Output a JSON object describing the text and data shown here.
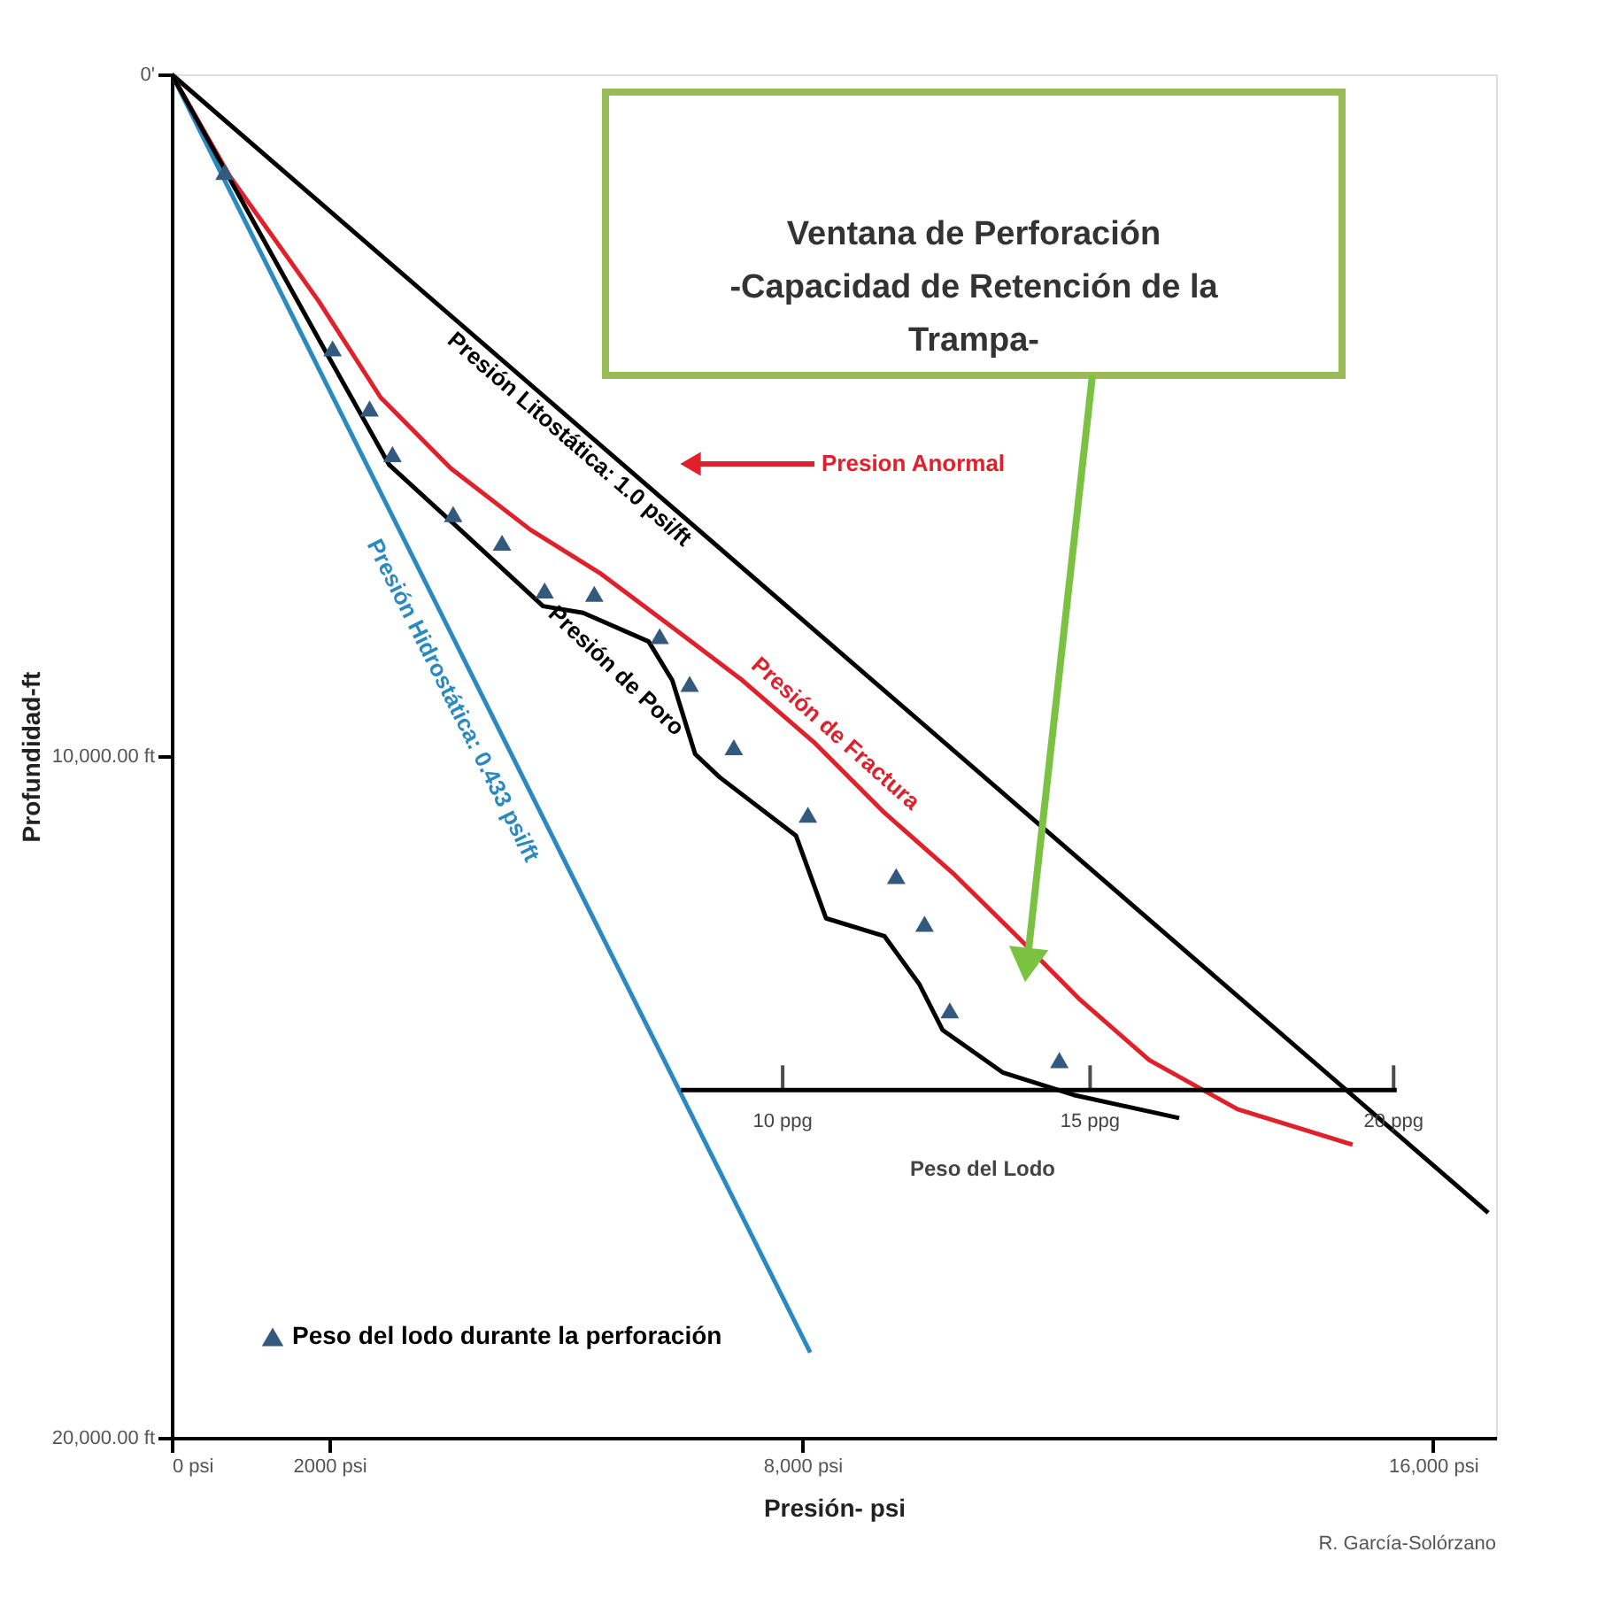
{
  "chart_data": {
    "type": "line",
    "xlabel": "Presión- psi",
    "ylabel": "Profundidad-ft",
    "xlim": [
      0,
      16800
    ],
    "ylim": [
      20000,
      0
    ],
    "xticks": [
      {
        "value": 0,
        "label": "0 psi"
      },
      {
        "value": 2000,
        "label": "2000 psi"
      },
      {
        "value": 8000,
        "label": "8,000 psi"
      },
      {
        "value": 16000,
        "label": "16,000 psi"
      }
    ],
    "yticks": [
      {
        "value": 0,
        "label": "0'"
      },
      {
        "value": 10000,
        "label": "10,000.00 ft"
      },
      {
        "value": 20000,
        "label": "20,000.00 ft"
      }
    ],
    "grid": false,
    "legend": "bottom left",
    "line_style": "solid",
    "series": [
      {
        "name": "Presión Litostática: 1.0 psi/ft",
        "color": "#000000",
        "x": [
          0,
          16700
        ],
        "values": [
          0,
          16700
        ]
      },
      {
        "name": "Presión Hidrostática: 0.433 psi/ft",
        "color": "#2a8ac0",
        "x": [
          0,
          8100
        ],
        "values": [
          0,
          18750
        ]
      },
      {
        "name": "Presión de Fractura",
        "color": "#e0202a",
        "x": [
          0,
          740,
          1860,
          2650,
          3540,
          4550,
          5450,
          6350,
          7240,
          8140,
          9040,
          9930,
          10720,
          11500,
          12400,
          13520,
          14980
        ],
        "values": [
          0,
          1500,
          3320,
          4740,
          5780,
          6680,
          7330,
          8110,
          8890,
          9790,
          10830,
          11740,
          12640,
          13550,
          14460,
          15180,
          15700
        ]
      },
      {
        "name": "Presión de Poro",
        "color": "#000000",
        "x": [
          0,
          1930,
          2760,
          3660,
          4710,
          5220,
          6050,
          6350,
          6640,
          6950,
          7920,
          8300,
          9040,
          9480,
          9780,
          10540,
          11440,
          12780
        ],
        "values": [
          0,
          4020,
          5730,
          6680,
          7800,
          7900,
          8320,
          8890,
          9970,
          10310,
          11170,
          12380,
          12640,
          13340,
          14020,
          14640,
          14970,
          15310
        ]
      },
      {
        "name": "Peso del lodo durante la perforación",
        "type": "scatter",
        "marker": "triangle",
        "color": "#34597f",
        "x": [
          670,
          2040,
          2510,
          2800,
          3570,
          4190,
          4730,
          5360,
          6190,
          6570,
          7130,
          8070,
          9190,
          9550,
          9870,
          11260
        ],
        "values": [
          1430,
          4020,
          4900,
          5570,
          6450,
          6870,
          7570,
          7620,
          8240,
          8940,
          9870,
          10860,
          11760,
          12460,
          13730,
          14460
        ]
      },
      {
        "type": "line",
        "color": "#000000",
        "x": [
          6460,
          15540
        ],
        "values": [
          14900,
          14900
        ]
      }
    ],
    "annotations": [
      "Ventana de Perforación -Capacidad de Retención de la Trampa-",
      "Presion Anormal",
      {
        "text": "10 ppg",
        "x": 7750,
        "y": 14900
      },
      {
        "text": "15 ppg",
        "x": 11650,
        "y": 14900
      },
      {
        "text": "20 ppg",
        "x": 15500,
        "y": 14900
      },
      "Peso del Lodo",
      "R. García-Solórzano"
    ]
  }
}
